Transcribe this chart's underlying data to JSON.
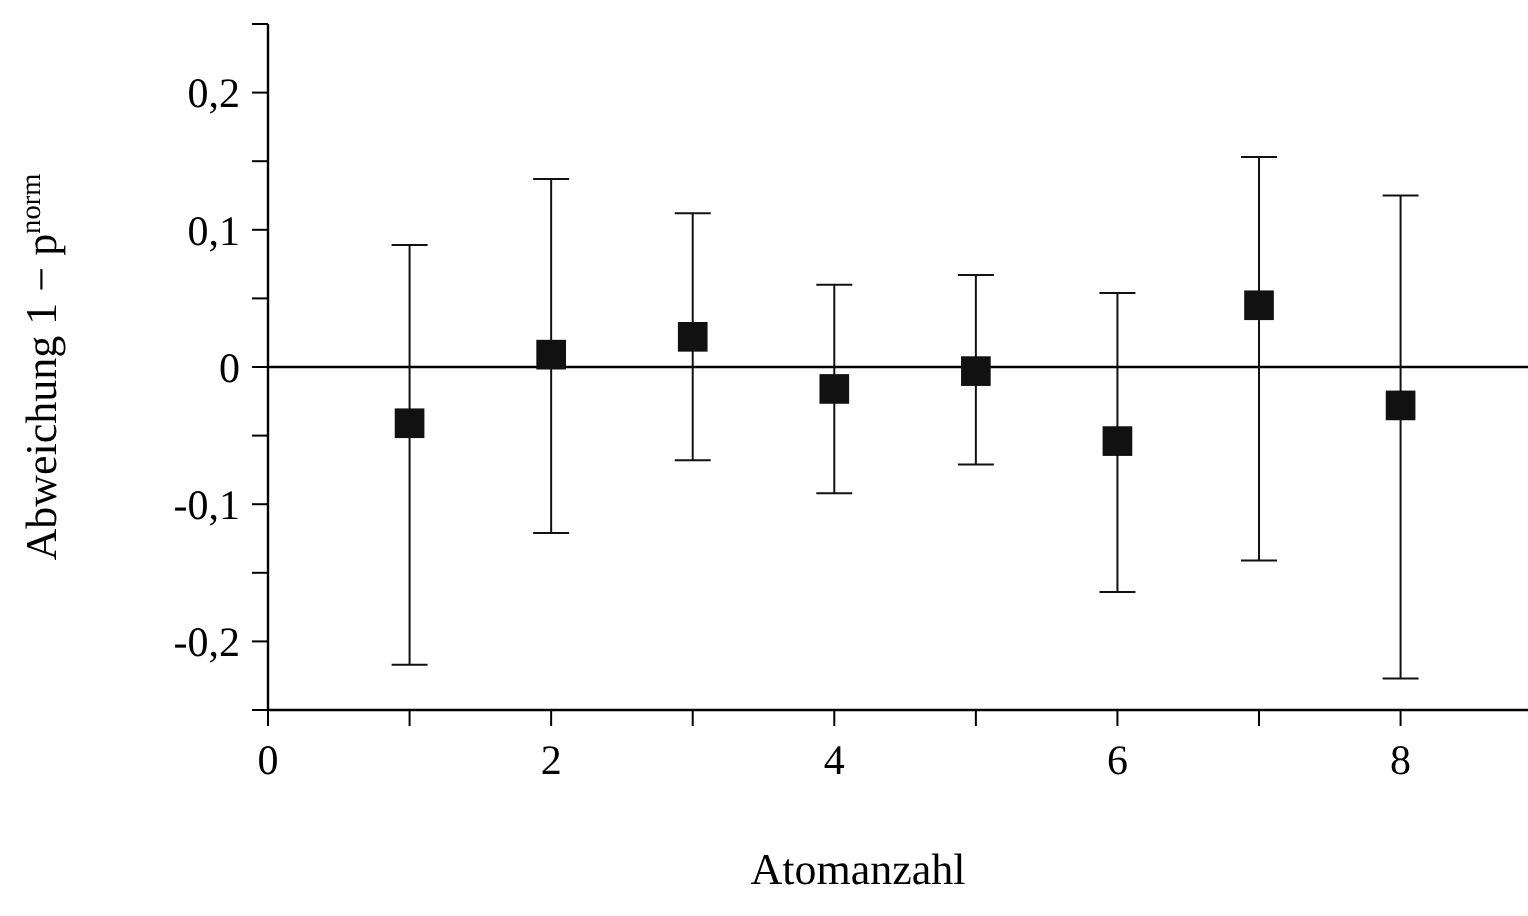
{
  "chart_data": {
    "type": "scatter",
    "xlabel": "Atomanzahl",
    "ylabel": "Abweichung 1 − p$^{norm}$",
    "x": [
      1,
      2,
      3,
      4,
      5,
      6,
      7,
      8
    ],
    "values": [
      -0.041,
      0.009,
      0.022,
      -0.016,
      -0.003,
      -0.054,
      0.045,
      -0.028
    ],
    "errors": [
      [
        -0.217,
        0.089
      ],
      [
        -0.121,
        0.137
      ],
      [
        -0.068,
        0.112
      ],
      [
        -0.092,
        0.06
      ],
      [
        -0.071,
        0.067
      ],
      [
        -0.164,
        0.054
      ],
      [
        -0.141,
        0.153
      ],
      [
        -0.227,
        0.125
      ]
    ],
    "color": "#111111",
    "marker": "square",
    "xlim": [
      0,
      8.9
    ],
    "xticks": [
      0,
      {
        "value": 1,
        "label": null
      },
      2,
      {
        "value": 3,
        "label": null
      },
      4,
      {
        "value": 5,
        "label": null
      },
      6,
      {
        "value": 7,
        "label": null
      },
      8
    ],
    "ylim": [
      -0.25,
      0.25
    ],
    "yticks": [
      {
        "value": -0.25,
        "label": null
      },
      {
        "value": -0.2,
        "label": "-0,2"
      },
      {
        "value": -0.15,
        "label": null
      },
      {
        "value": -0.1,
        "label": "-0,1"
      },
      {
        "value": -0.05,
        "label": null
      },
      0,
      {
        "value": 0.05,
        "label": null
      },
      {
        "value": 0.1,
        "label": "0,1"
      },
      {
        "value": 0.15,
        "label": null
      },
      {
        "value": 0.2,
        "label": "0,2"
      },
      {
        "value": 0.25,
        "label": null
      }
    ],
    "ref_lines": [
      {
        "axis": "y",
        "value": 0,
        "label": null
      }
    ],
    "grid": false
  }
}
